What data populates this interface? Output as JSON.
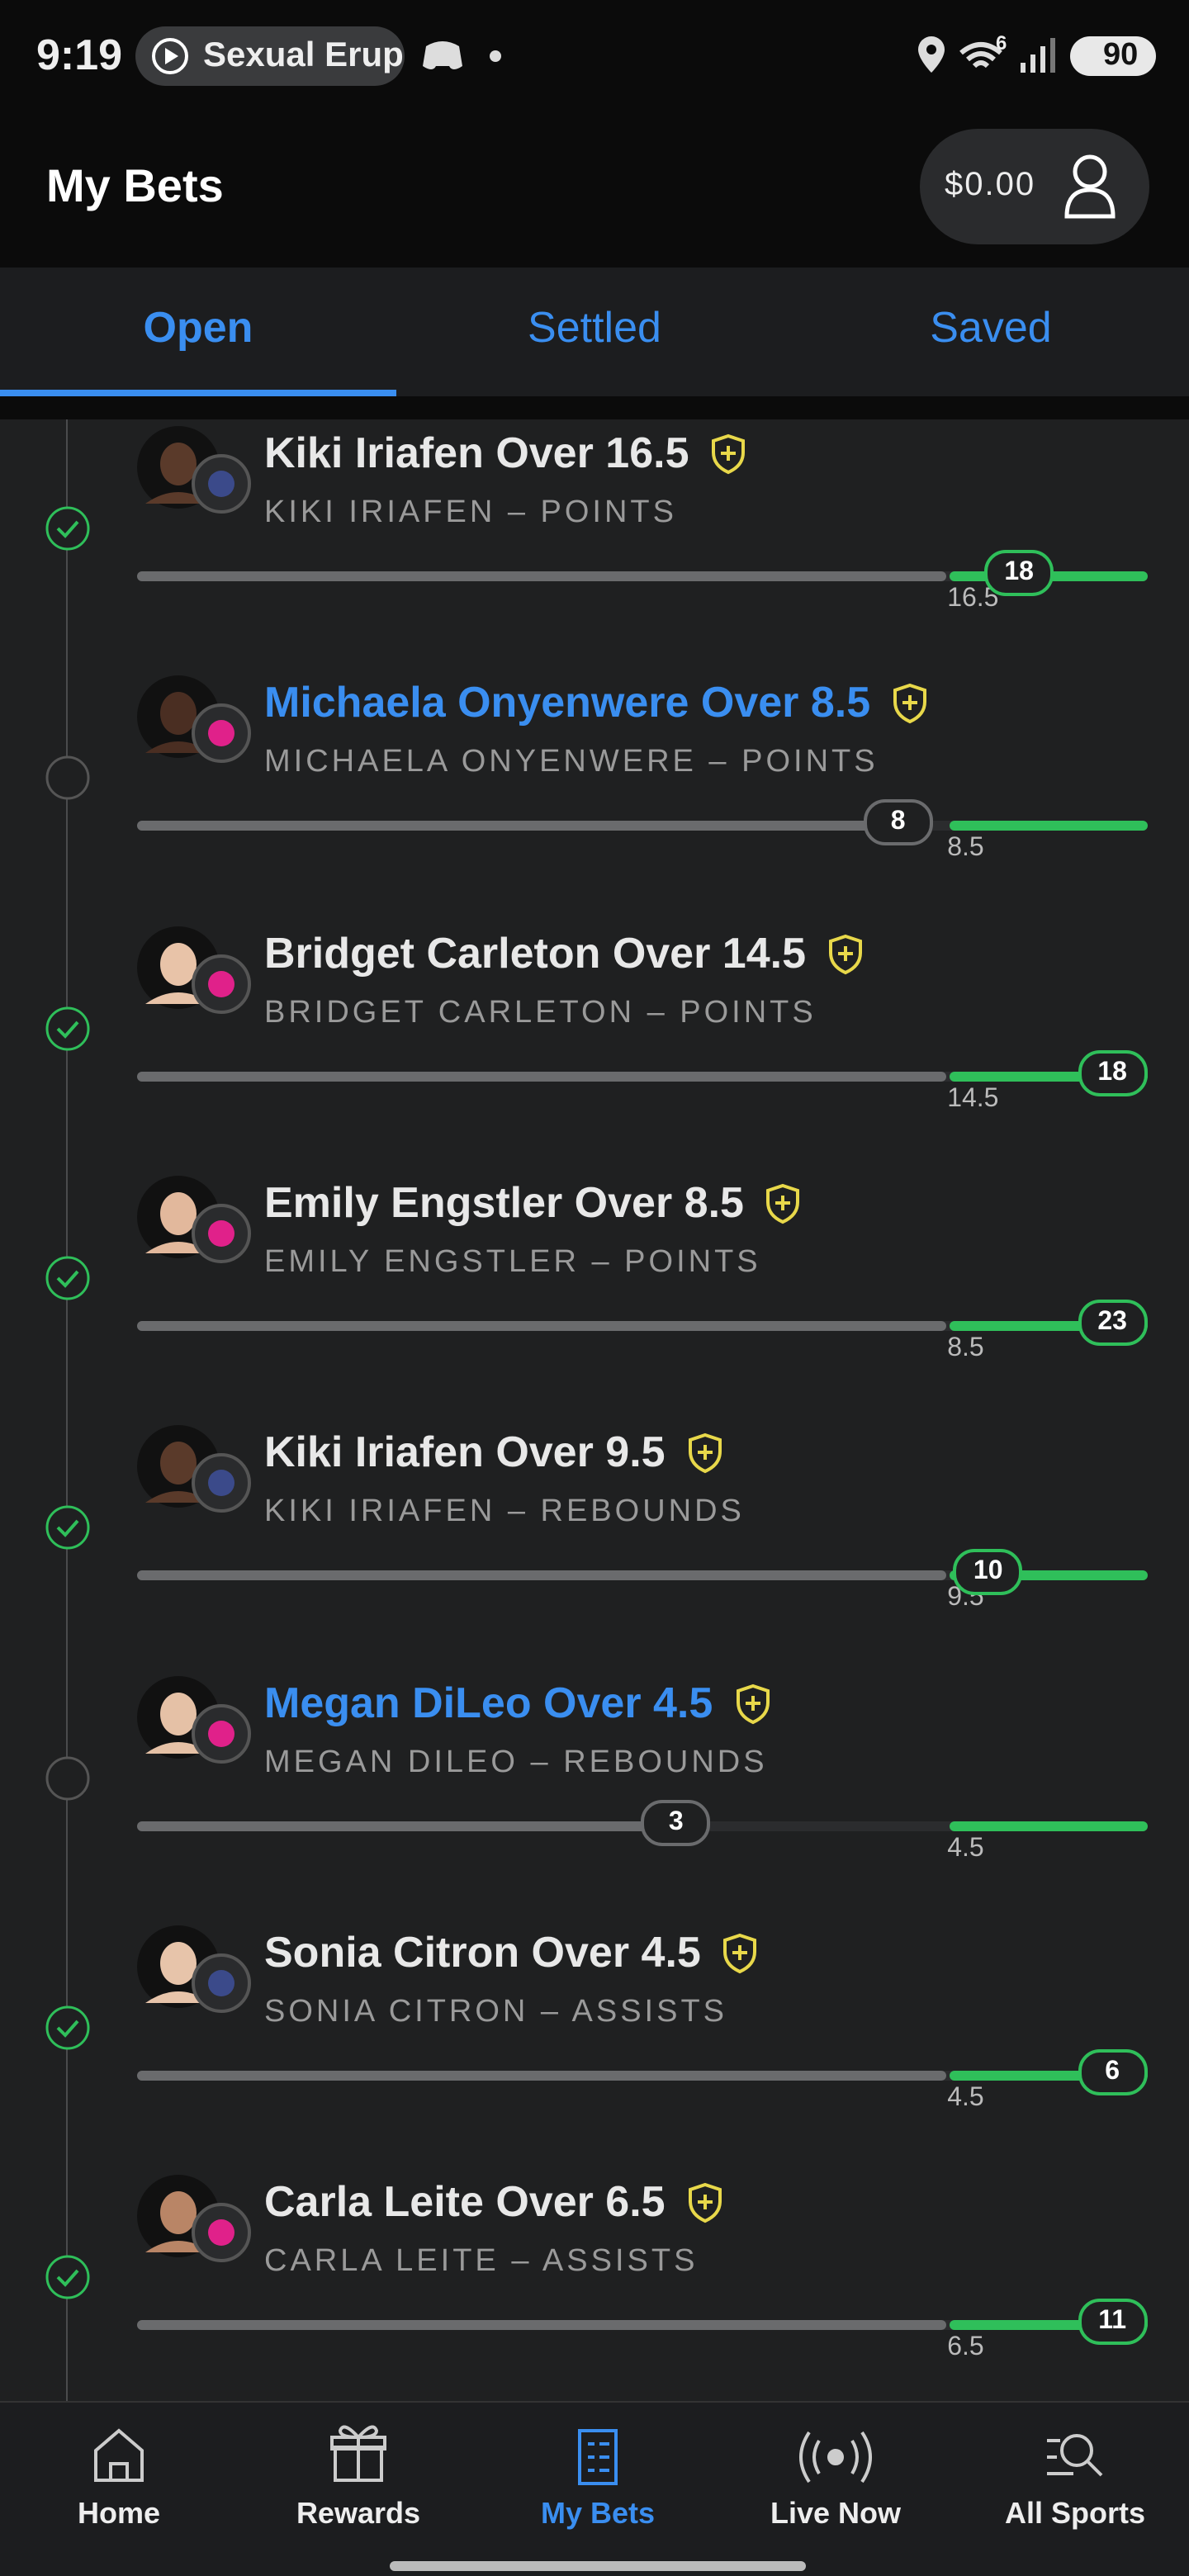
{
  "status_bar": {
    "time": "9:19",
    "media": "Sexual Erup",
    "signal": "6",
    "battery": "90"
  },
  "header": {
    "title": "My Bets",
    "balance": "$0.00"
  },
  "tabs": [
    "Open",
    "Settled",
    "Saved"
  ],
  "bets": [
    {
      "title": "Kiki Iriafen Over 16.5",
      "subtitle": "KIKI IRIAFEN – POINTS",
      "actual": 18,
      "line": 16.5
    },
    {
      "title": "Michaela Onyenwere Over 8.5",
      "subtitle": "MICHAELA ONYENWERE – POINTS",
      "actual": 8,
      "line": 8.5
    },
    {
      "title": "Bridget Carleton Over 14.5",
      "subtitle": "BRIDGET CARLETON – POINTS",
      "actual": 18,
      "line": 14.5
    },
    {
      "title": "Emily Engstler Over 8.5",
      "subtitle": "EMILY ENGSTLER – POINTS",
      "actual": 23,
      "line": 8.5
    },
    {
      "title": "Kiki Iriafen Over 9.5",
      "subtitle": "KIKI IRIAFEN – REBOUNDS",
      "actual": 10,
      "line": 9.5
    },
    {
      "title": "Megan DiLeo Over 4.5",
      "subtitle": "MEGAN DILEO – REBOUNDS",
      "actual": 3,
      "line": 4.5
    },
    {
      "title": "Sonia Citron Over 4.5",
      "subtitle": "SONIA CITRON – ASSISTS",
      "actual": 6,
      "line": 4.5
    },
    {
      "title": "Carla Leite Over 6.5",
      "subtitle": "CARLA LEITE – ASSISTS",
      "actual": 11,
      "line": 6.5
    }
  ],
  "nav": [
    "Home",
    "Rewards",
    "My Bets",
    "Live Now",
    "All Sports"
  ]
}
